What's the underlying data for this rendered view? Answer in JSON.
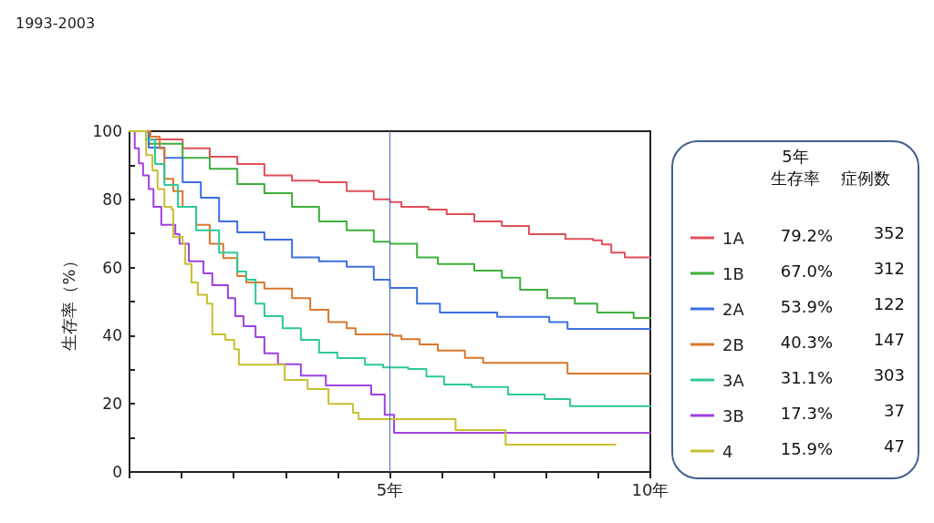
{
  "chart_data": {
    "type": "step",
    "title": "1993-2003",
    "ylabel": "生存率（%）",
    "xlim": [
      0,
      10
    ],
    "xticks": [
      {
        "value": 0,
        "label": null
      },
      {
        "value": 1,
        "label": null
      },
      {
        "value": 2,
        "label": null
      },
      {
        "value": 3,
        "label": null
      },
      {
        "value": 4,
        "label": null
      },
      {
        "value": 5,
        "label": "5年"
      },
      {
        "value": 6,
        "label": null
      },
      {
        "value": 7,
        "label": null
      },
      {
        "value": 8,
        "label": null
      },
      {
        "value": 9,
        "label": null
      },
      {
        "value": 10,
        "label": "10年"
      }
    ],
    "ylim": [
      0,
      100
    ],
    "yticks": [
      0,
      {
        "value": 10,
        "label": null
      },
      20,
      {
        "value": 30,
        "label": null
      },
      40,
      {
        "value": 50,
        "label": null
      },
      60,
      {
        "value": 70,
        "label": null
      },
      80,
      {
        "value": 90,
        "label": null
      },
      100
    ],
    "grid": false,
    "legend": "right",
    "marker": "none",
    "line_style": "solid",
    "ref_lines": [
      {
        "axis": "x",
        "value": 5,
        "label": null,
        "color": "#4472c4"
      }
    ],
    "annotations": [
      "5年",
      "生存率",
      "症例数",
      "79.2%",
      "352",
      "67.0%",
      "312",
      "53.9%",
      "122",
      "40.3%",
      "147",
      "31.1%",
      "303",
      "17.3%",
      "37",
      "15.9%",
      "47"
    ],
    "series": [
      {
        "name": "1A",
        "color": "#e0505a",
        "x": [
          0,
          0.37,
          1.02,
          1.54,
          2.07,
          2.59,
          3.12,
          3.64,
          4.17,
          4.69,
          5,
          5.22,
          5.74,
          6.09,
          6.62,
          7.15,
          7.67,
          8.37,
          8.9,
          9.07,
          9.25,
          9.51,
          10
        ],
        "values": [
          100,
          97.6,
          95,
          92.5,
          90.4,
          87,
          85.5,
          85,
          82.4,
          80,
          79.2,
          77.8,
          77,
          75.7,
          73.5,
          72.2,
          69.8,
          68.4,
          68,
          66.8,
          64.4,
          63,
          63
        ]
      },
      {
        "name": "1B",
        "color": "#3cb03c",
        "x": [
          0,
          0.37,
          1.02,
          1.54,
          2.07,
          2.59,
          3.12,
          3.64,
          4.17,
          4.69,
          5,
          5.52,
          5.92,
          6.62,
          7.15,
          7.5,
          8.02,
          8.55,
          8.98,
          9.68,
          10
        ],
        "values": [
          100,
          96.3,
          92.2,
          89,
          84.5,
          81.8,
          77.8,
          73.5,
          70.9,
          67.6,
          67,
          63,
          61,
          59.1,
          57,
          53.5,
          51,
          49.4,
          46.8,
          45.2,
          45.2
        ]
      },
      {
        "name": "2A",
        "color": "#3c6fe0",
        "x": [
          0,
          0.37,
          0.67,
          1.02,
          1.37,
          1.72,
          2.07,
          2.59,
          3.12,
          3.64,
          4.17,
          4.69,
          5,
          5.52,
          5.96,
          7.06,
          8.06,
          8.41,
          10
        ],
        "values": [
          100,
          95.2,
          92.2,
          85,
          80.5,
          73.5,
          70.3,
          68.2,
          63,
          61.8,
          60.2,
          56.4,
          54,
          49.4,
          46.8,
          45.5,
          44,
          42,
          42
        ]
      },
      {
        "name": "2B",
        "color": "#d8782c",
        "x": [
          0,
          0.4,
          0.58,
          0.67,
          0.84,
          1.02,
          1.28,
          1.54,
          1.8,
          2.07,
          2.24,
          2.59,
          3.12,
          3.47,
          3.82,
          4.17,
          4.34,
          5.05,
          5.22,
          5.57,
          5.92,
          6.44,
          6.79,
          8.41,
          10
        ],
        "values": [
          100,
          98.4,
          95,
          86,
          82.4,
          77.8,
          72.5,
          67,
          62.8,
          57.5,
          55.6,
          53.8,
          51,
          47.6,
          44,
          42.2,
          40.4,
          40,
          39,
          37.4,
          35.6,
          33.5,
          32,
          28.9,
          28.9
        ]
      },
      {
        "name": "3A",
        "color": "#2ec89a",
        "x": [
          0,
          0.32,
          0.49,
          0.67,
          0.93,
          1.28,
          1.72,
          2.07,
          2.24,
          2.42,
          2.59,
          2.94,
          3.29,
          3.64,
          3.99,
          4.52,
          4.87,
          5.35,
          5.7,
          6.04,
          6.57,
          7.27,
          7.97,
          8.46,
          10
        ],
        "values": [
          100,
          97.5,
          90.4,
          84.2,
          77.8,
          70.9,
          64.4,
          58.8,
          56.4,
          49.4,
          45.7,
          42.2,
          38.8,
          35,
          33.4,
          31.5,
          30.7,
          30.2,
          28,
          25.7,
          24.9,
          22.7,
          21.4,
          19.3,
          19.3
        ]
      },
      {
        "name": "3B",
        "color": "#a040e0",
        "x": [
          0,
          0.1,
          0.18,
          0.26,
          0.37,
          0.46,
          0.61,
          0.88,
          0.96,
          1.14,
          1.42,
          1.59,
          1.89,
          2.03,
          2.19,
          2.42,
          2.59,
          2.85,
          3.29,
          3.77,
          4.64,
          4.9,
          5.08,
          10
        ],
        "values": [
          100,
          95,
          90.6,
          87,
          83,
          77.8,
          72.5,
          69.8,
          67,
          61.8,
          58.3,
          54.8,
          51,
          45.7,
          42.8,
          39.6,
          34.8,
          31.6,
          28.3,
          25.4,
          22.7,
          16.8,
          11.5,
          11.5
        ]
      },
      {
        "name": "4",
        "color": "#c8c030",
        "x": [
          0,
          0.32,
          0.44,
          0.54,
          0.67,
          0.81,
          0.84,
          1.02,
          1.07,
          1.19,
          1.31,
          1.49,
          1.59,
          1.84,
          2.01,
          2.1,
          2.98,
          3.42,
          3.82,
          4.29,
          4.4,
          6.26,
          7.22,
          9.33
        ],
        "values": [
          100,
          93,
          88.5,
          83,
          77.8,
          77,
          69,
          67,
          61,
          55.6,
          52,
          49.4,
          40.4,
          38.8,
          36,
          31.5,
          27,
          24.3,
          20,
          17.4,
          15.5,
          12.3,
          8,
          7.9
        ]
      }
    ]
  }
}
